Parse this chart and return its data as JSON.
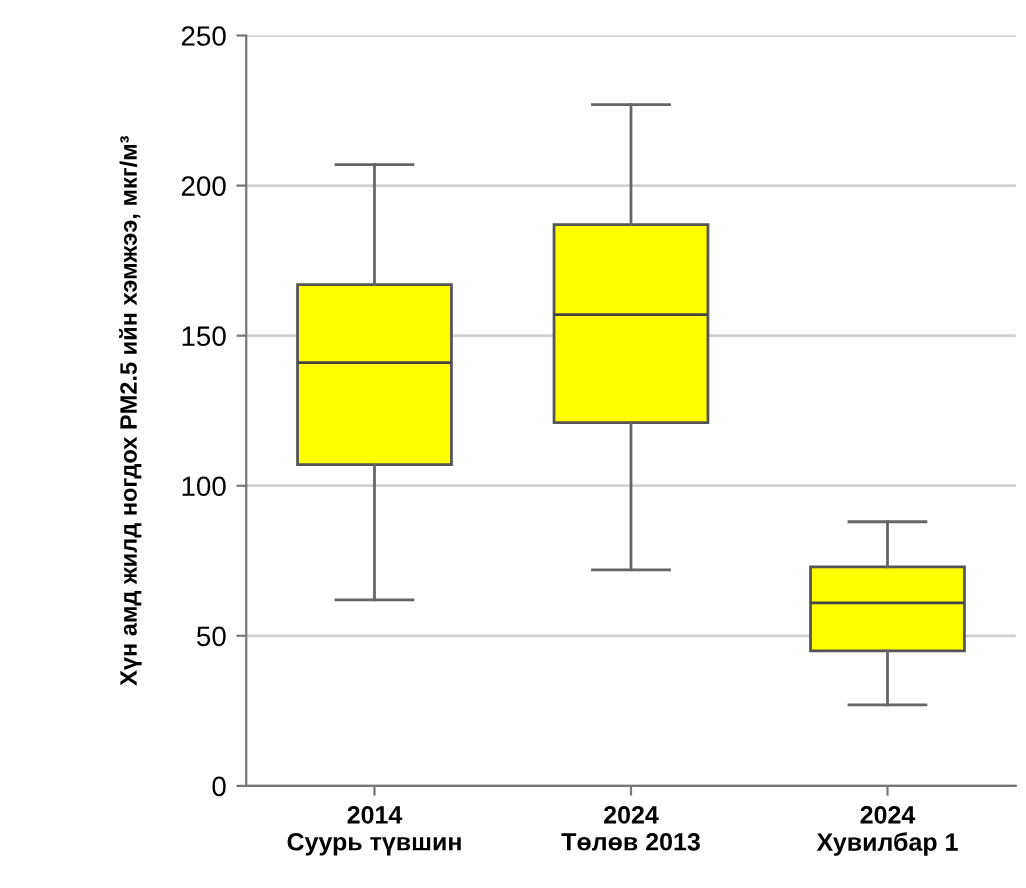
{
  "chart_data": {
    "type": "box",
    "categories": [
      "2014\nСуурь түвшин",
      "2024\nТөлөв 2013",
      "2024\nХувилбар 1"
    ],
    "ylabel": "Хүн амд жилд ногдох PM2.5 ийн хэмжээ, мкг/м³",
    "color": "#ffff00",
    "boxes": [
      {
        "low": 62,
        "q1": 107,
        "median": 141,
        "q3": 167,
        "high": 207
      },
      {
        "low": 72,
        "q1": 121,
        "median": 157,
        "q3": 187,
        "high": 227
      },
      {
        "low": 27,
        "q1": 45,
        "median": 61,
        "q3": 73,
        "high": 88
      }
    ],
    "ylim": [
      0,
      250
    ],
    "yticks": [
      0,
      50,
      100,
      150,
      200,
      250
    ],
    "grid": "y"
  }
}
